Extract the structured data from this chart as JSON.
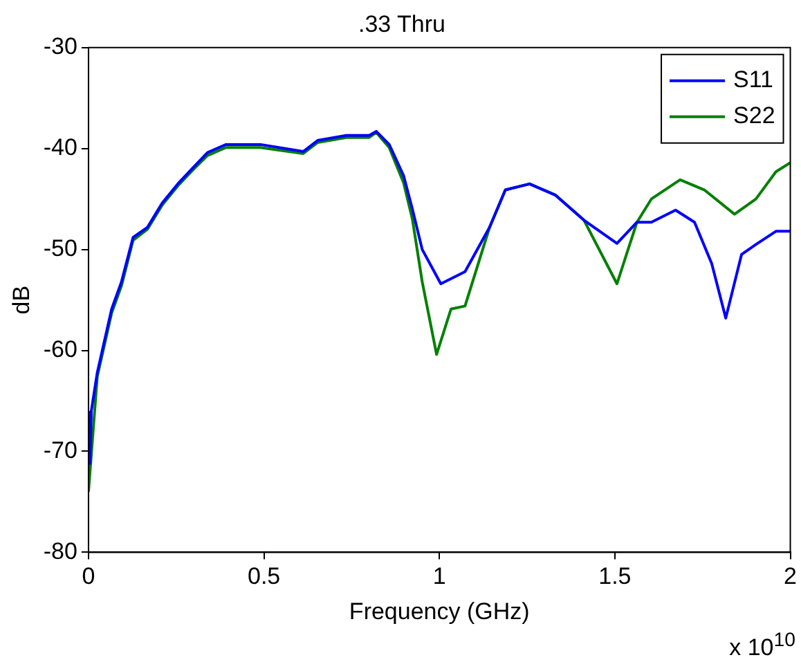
{
  "chart_data": {
    "type": "line",
    "title": ".33 Thru",
    "xlabel": "Frequency (GHz)",
    "ylabel": "dB",
    "annotations": [
      "x 10$^{10}$"
    ],
    "xlim": [
      0,
      2
    ],
    "xticks": [
      0,
      0.5,
      1,
      1.5,
      2
    ],
    "ylim": [
      -80,
      -30
    ],
    "yticks": [
      -80,
      -70,
      -60,
      -50,
      -40,
      -30
    ],
    "grid": false,
    "legend": "top right",
    "marker": "none",
    "line_style": "solid",
    "series": [
      {
        "name": "S11",
        "color": "#0000ff",
        "x": [
          0,
          0.004,
          0.008,
          0.025,
          0.066,
          0.094,
          0.127,
          0.168,
          0.21,
          0.257,
          0.298,
          0.339,
          0.392,
          0.49,
          0.612,
          0.653,
          0.735,
          0.8,
          0.82,
          0.857,
          0.898,
          0.923,
          0.951,
          1.004,
          1.073,
          1.143,
          1.188,
          1.257,
          1.33,
          1.412,
          1.506,
          1.563,
          1.604,
          1.673,
          1.727,
          1.776,
          1.816,
          1.861,
          1.902,
          1.959,
          2
        ],
        "values": [
          -66,
          -71.2,
          -66,
          -62.2,
          -55.9,
          -53.2,
          -48.8,
          -47.8,
          -45.4,
          -43.4,
          -41.9,
          -40.4,
          -39.6,
          -39.6,
          -40.3,
          -39.2,
          -38.7,
          -38.7,
          -38.3,
          -39.6,
          -42.7,
          -46,
          -50,
          -53.4,
          -52.2,
          -47.8,
          -44.1,
          -43.5,
          -44.6,
          -47.1,
          -49.4,
          -47.3,
          -47.3,
          -46.1,
          -47.3,
          -51.4,
          -56.8,
          -50.5,
          -49.5,
          -48.2,
          -48.2
        ]
      },
      {
        "name": "S22",
        "color": "#008000",
        "x": [
          0,
          0.025,
          0.066,
          0.094,
          0.127,
          0.168,
          0.21,
          0.257,
          0.298,
          0.339,
          0.392,
          0.49,
          0.612,
          0.653,
          0.735,
          0.8,
          0.82,
          0.857,
          0.898,
          0.923,
          0.951,
          0.992,
          1.033,
          1.073,
          1.143,
          1.188,
          1.257,
          1.33,
          1.412,
          1.506,
          1.563,
          1.604,
          1.686,
          1.755,
          1.841,
          1.902,
          1.959,
          2
        ],
        "values": [
          -74,
          -62.6,
          -56.3,
          -53.6,
          -49.1,
          -48,
          -45.6,
          -43.6,
          -42.1,
          -40.7,
          -39.9,
          -39.9,
          -40.5,
          -39.4,
          -38.9,
          -38.9,
          -38.4,
          -39.9,
          -43.4,
          -47,
          -53.2,
          -60.4,
          -55.9,
          -55.6,
          -47.8,
          -44.1,
          -43.5,
          -44.6,
          -47.1,
          -53.4,
          -47.3,
          -45,
          -43.1,
          -44.1,
          -46.5,
          -45,
          -42.3,
          -41.4
        ]
      }
    ]
  }
}
